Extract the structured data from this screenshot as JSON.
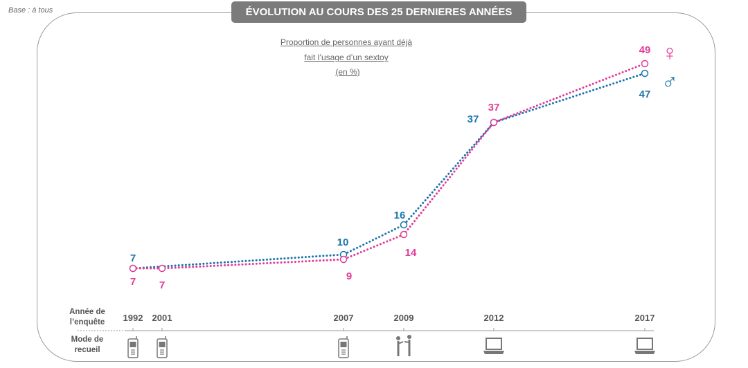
{
  "base_note": "Base : à tous",
  "title": "ÉVOLUTION AU COURS DES 25 DERNIERES ANNÉES",
  "subtitle_line1": "Proportion de personnes ayant déjà",
  "subtitle_line2": "fait l’usage d’un sextoy",
  "unit": "(en %)",
  "row_labels": {
    "year": [
      "Année de",
      "l’enquête"
    ],
    "mode": [
      "Mode de",
      "recueil"
    ]
  },
  "colors": {
    "female": "#e23c96",
    "male": "#1b74ad",
    "axis": "#999999"
  },
  "gender_symbols": {
    "female": "♀",
    "male": "♂"
  },
  "chart_data": {
    "type": "line",
    "title": "Proportion de personnes ayant déjà fait l’usage d’un sextoy (en %)",
    "x": [
      1992,
      2001,
      2007,
      2009,
      2012,
      2017
    ],
    "x_labels": [
      "1992",
      "2001",
      "2007",
      "2009",
      "2012",
      "2017"
    ],
    "series": [
      {
        "name": "Femmes",
        "symbol": "♀",
        "values": [
          7,
          7,
          9,
          14,
          37,
          49
        ]
      },
      {
        "name": "Hommes",
        "symbol": "♂",
        "values": [
          7,
          null,
          10,
          16,
          37,
          47
        ]
      }
    ],
    "collection_modes": [
      "phone",
      "phone",
      "phone",
      "face-to-face",
      "laptop",
      "laptop"
    ],
    "ylim": [
      0,
      55
    ],
    "xlabel": "Année de l’enquête",
    "ylabel": "%"
  }
}
